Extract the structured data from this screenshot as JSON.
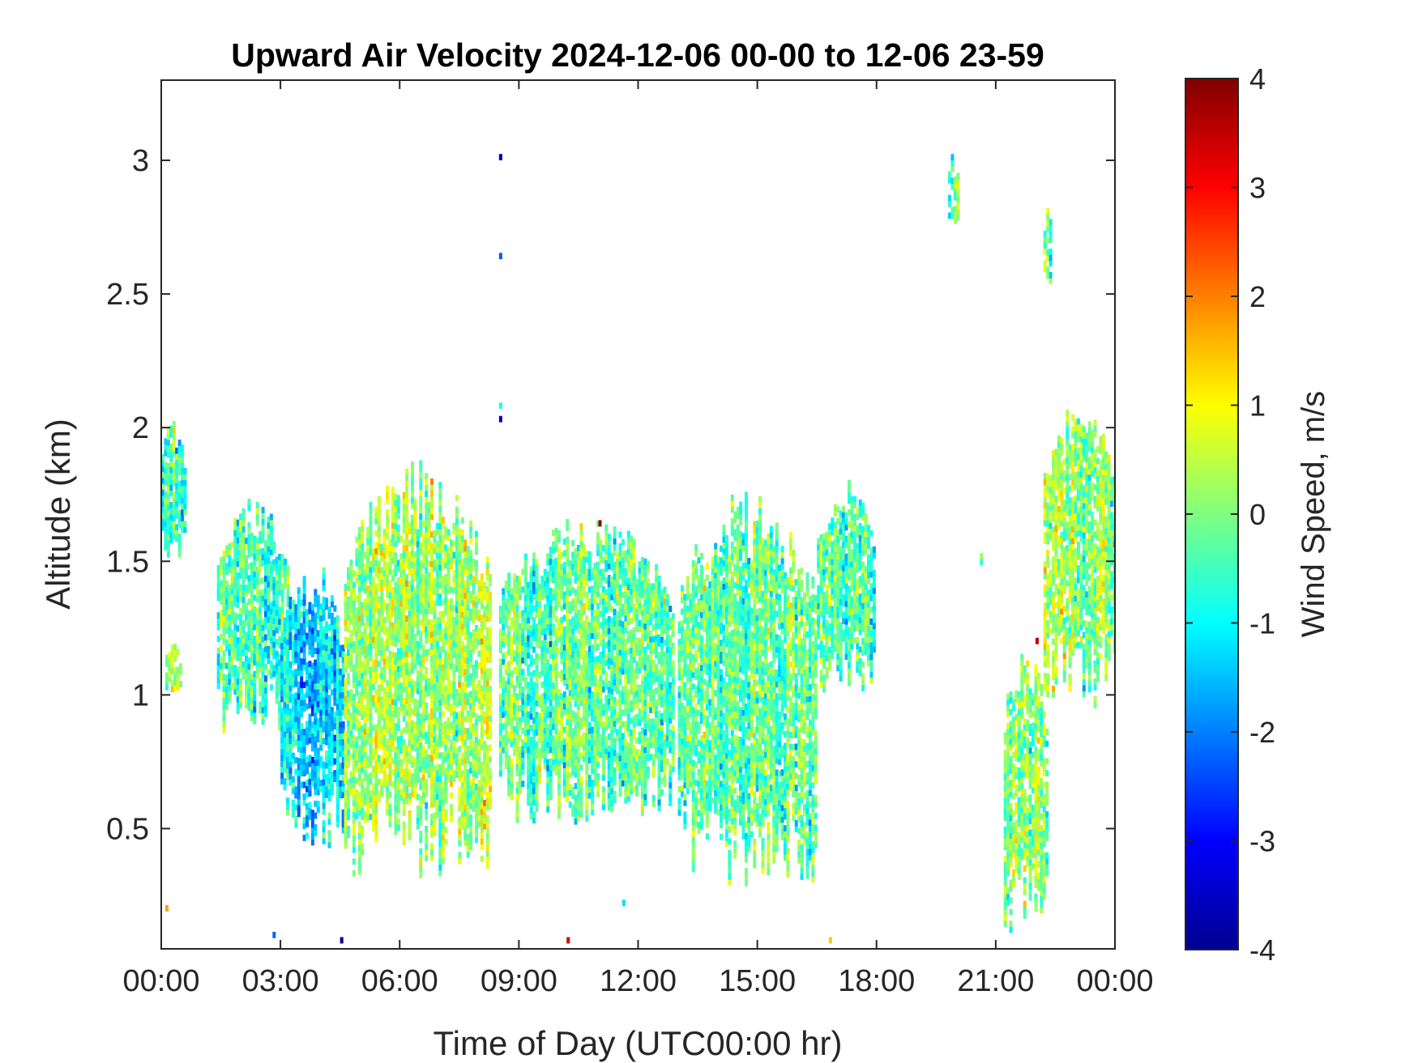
{
  "chart_data": {
    "type": "heatmap",
    "title": "Upward Air Velocity 2024-12-06 00-00 to 12-06 23-59",
    "xlabel": "Time of Day (UTC00:00 hr)",
    "ylabel": "Altitude (km)",
    "colorbar_label": "Wind Speed, m/s",
    "colormap": "jet",
    "xlim_hours": [
      0,
      24
    ],
    "ylim_km": [
      0.05,
      3.3
    ],
    "clim": [
      -4,
      4
    ],
    "grid": false,
    "x_ticks": [
      {
        "hour": 0,
        "label": "00:00"
      },
      {
        "hour": 3,
        "label": "03:00"
      },
      {
        "hour": 6,
        "label": "06:00"
      },
      {
        "hour": 9,
        "label": "09:00"
      },
      {
        "hour": 12,
        "label": "12:00"
      },
      {
        "hour": 15,
        "label": "15:00"
      },
      {
        "hour": 18,
        "label": "18:00"
      },
      {
        "hour": 21,
        "label": "21:00"
      },
      {
        "hour": 24,
        "label": "00:00"
      }
    ],
    "y_ticks": [
      {
        "km": 0.5,
        "label": "0.5"
      },
      {
        "km": 1,
        "label": "1"
      },
      {
        "km": 1.5,
        "label": "1.5"
      },
      {
        "km": 2,
        "label": "2"
      },
      {
        "km": 2.5,
        "label": "2.5"
      },
      {
        "km": 3,
        "label": "3"
      }
    ],
    "colorbar_ticks": [
      {
        "value": 4,
        "label": "4"
      },
      {
        "value": 3,
        "label": "3"
      },
      {
        "value": 2,
        "label": "2"
      },
      {
        "value": 1,
        "label": "1"
      },
      {
        "value": 0,
        "label": "0"
      },
      {
        "value": -1,
        "label": "-1"
      },
      {
        "value": -2,
        "label": "-2"
      },
      {
        "value": -3,
        "label": "-3"
      },
      {
        "value": -4,
        "label": "-4"
      }
    ],
    "data_regions": [
      {
        "t": [
          0.0,
          0.6
        ],
        "alt": [
          1.5,
          2.02
        ],
        "mean": -0.3
      },
      {
        "t": [
          0.1,
          0.55
        ],
        "alt": [
          1.0,
          1.2
        ],
        "mean": 0.2
      },
      {
        "t": [
          1.4,
          3.2
        ],
        "alt": [
          0.85,
          1.72
        ],
        "mean": -0.4
      },
      {
        "t": [
          3.0,
          4.6
        ],
        "alt": [
          0.42,
          1.5
        ],
        "mean": -1.2
      },
      {
        "t": [
          4.6,
          8.3
        ],
        "alt": [
          0.3,
          1.88
        ],
        "mean": 0.1
      },
      {
        "t": [
          8.5,
          12.9
        ],
        "alt": [
          0.5,
          1.68
        ],
        "mean": -0.3
      },
      {
        "t": [
          13.0,
          16.5
        ],
        "alt": [
          0.28,
          1.77
        ],
        "mean": -0.2
      },
      {
        "t": [
          16.5,
          18.0
        ],
        "alt": [
          1.0,
          1.8
        ],
        "mean": -0.5
      },
      {
        "t": [
          19.8,
          20.1
        ],
        "alt": [
          2.75,
          3.02
        ],
        "mean": -0.5
      },
      {
        "t": [
          20.6,
          20.7
        ],
        "alt": [
          1.48,
          1.52
        ],
        "mean": 0.3
      },
      {
        "t": [
          21.2,
          22.3
        ],
        "alt": [
          0.1,
          1.2
        ],
        "mean": 0.1
      },
      {
        "t": [
          22.2,
          22.4
        ],
        "alt": [
          2.5,
          2.85
        ],
        "mean": -0.4
      },
      {
        "t": [
          22.2,
          24.0
        ],
        "alt": [
          0.95,
          2.12
        ],
        "mean": 0.1
      }
    ],
    "isolated_points": [
      {
        "t": 8.5,
        "alt": 3.0,
        "value": -3.5
      },
      {
        "t": 8.5,
        "alt": 2.63,
        "value": -2.3
      },
      {
        "t": 8.5,
        "alt": 2.07,
        "value": -0.8
      },
      {
        "t": 8.5,
        "alt": 2.02,
        "value": -3.5
      },
      {
        "t": 11.0,
        "alt": 1.63,
        "value": 3.9
      },
      {
        "t": 22.0,
        "alt": 1.19,
        "value": 3.5
      },
      {
        "t": 10.2,
        "alt": 0.07,
        "value": 3.3
      },
      {
        "t": 4.5,
        "alt": 0.07,
        "value": -3.8
      },
      {
        "t": 16.8,
        "alt": 0.07,
        "value": 1.4
      },
      {
        "t": 0.1,
        "alt": 0.19,
        "value": 1.7
      },
      {
        "t": 2.8,
        "alt": 0.09,
        "value": -2.2
      },
      {
        "t": 11.6,
        "alt": 0.21,
        "value": -1.2
      }
    ]
  }
}
